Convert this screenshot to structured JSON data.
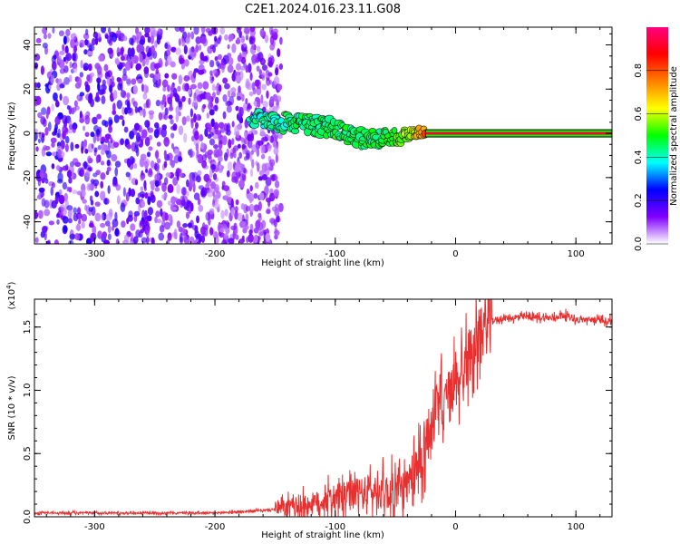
{
  "title": "C2E1.2024.016.23.11.G08",
  "chart_data": [
    {
      "type": "heatmap",
      "xlabel": "Height of straight line (km)",
      "ylabel": "Frequency (Hz)",
      "xlim": [
        -350,
        130
      ],
      "ylim": [
        -50,
        48
      ],
      "x_ticks": [
        -300,
        -200,
        -100,
        0,
        100
      ],
      "y_ticks": [
        -40,
        -20,
        0,
        20,
        40
      ],
      "colorbar": {
        "label": "Normalized spectral amplitude",
        "range": [
          0,
          1
        ],
        "ticks": [
          "0.0",
          "0.2",
          "0.4",
          "0.6",
          "0.8"
        ],
        "colormap": [
          "#ffffff",
          "#8000ff",
          "#0000ff",
          "#00ffff",
          "#00ff00",
          "#ffff00",
          "#ff8000",
          "#ff0000",
          "#ff0080"
        ]
      },
      "noise_region": {
        "x": [
          -350,
          -145
        ],
        "freq": [
          -50,
          48
        ],
        "amplitude": [
          0.05,
          0.25
        ]
      },
      "signal_track": {
        "x": [
          -170,
          -140,
          -120,
          -100,
          -80,
          -60,
          -45,
          -35,
          -25,
          -10,
          0,
          10,
          50,
          100,
          130
        ],
        "freq": [
          6,
          5,
          4,
          2,
          -2,
          -3,
          -1,
          0,
          1,
          0,
          0,
          0,
          0,
          0,
          0
        ],
        "amplitude": [
          0.35,
          0.38,
          0.4,
          0.42,
          0.4,
          0.42,
          0.5,
          0.55,
          0.75,
          0.85,
          0.9,
          0.95,
          0.95,
          0.95,
          0.95
        ]
      }
    },
    {
      "type": "line",
      "xlabel": "Height of straight line (km)",
      "ylabel": "SNR (10 * v/v)",
      "yscale_label": "(x10",
      "yscale_exp": "4",
      "yscale_close": ")",
      "xlim": [
        -350,
        130
      ],
      "ylim": [
        0,
        1.72
      ],
      "x_ticks": [
        -300,
        -200,
        -100,
        0,
        100
      ],
      "y_ticks": [
        "0.0",
        "0.5",
        "1.0",
        "1.5"
      ],
      "line_color": "#e83030",
      "series": [
        {
          "x": [
            -350,
            -300,
            -250,
            -200,
            -180,
            -160,
            -140,
            -120,
            -100,
            -80,
            -70,
            -60,
            -50,
            -40,
            -35,
            -30,
            -25,
            -20,
            -15,
            -10,
            -5,
            0,
            5,
            10,
            15,
            20,
            25,
            30,
            35,
            40,
            60,
            80,
            90,
            100,
            130
          ],
          "values": [
            0.03,
            0.03,
            0.03,
            0.03,
            0.04,
            0.05,
            0.07,
            0.1,
            0.15,
            0.18,
            0.2,
            0.2,
            0.2,
            0.22,
            0.28,
            0.45,
            0.6,
            0.72,
            0.85,
            0.9,
            0.95,
            1.05,
            1.15,
            1.25,
            1.35,
            1.43,
            1.5,
            1.55,
            1.56,
            1.57,
            1.58,
            1.57,
            1.6,
            1.56,
            1.55
          ]
        }
      ]
    }
  ]
}
